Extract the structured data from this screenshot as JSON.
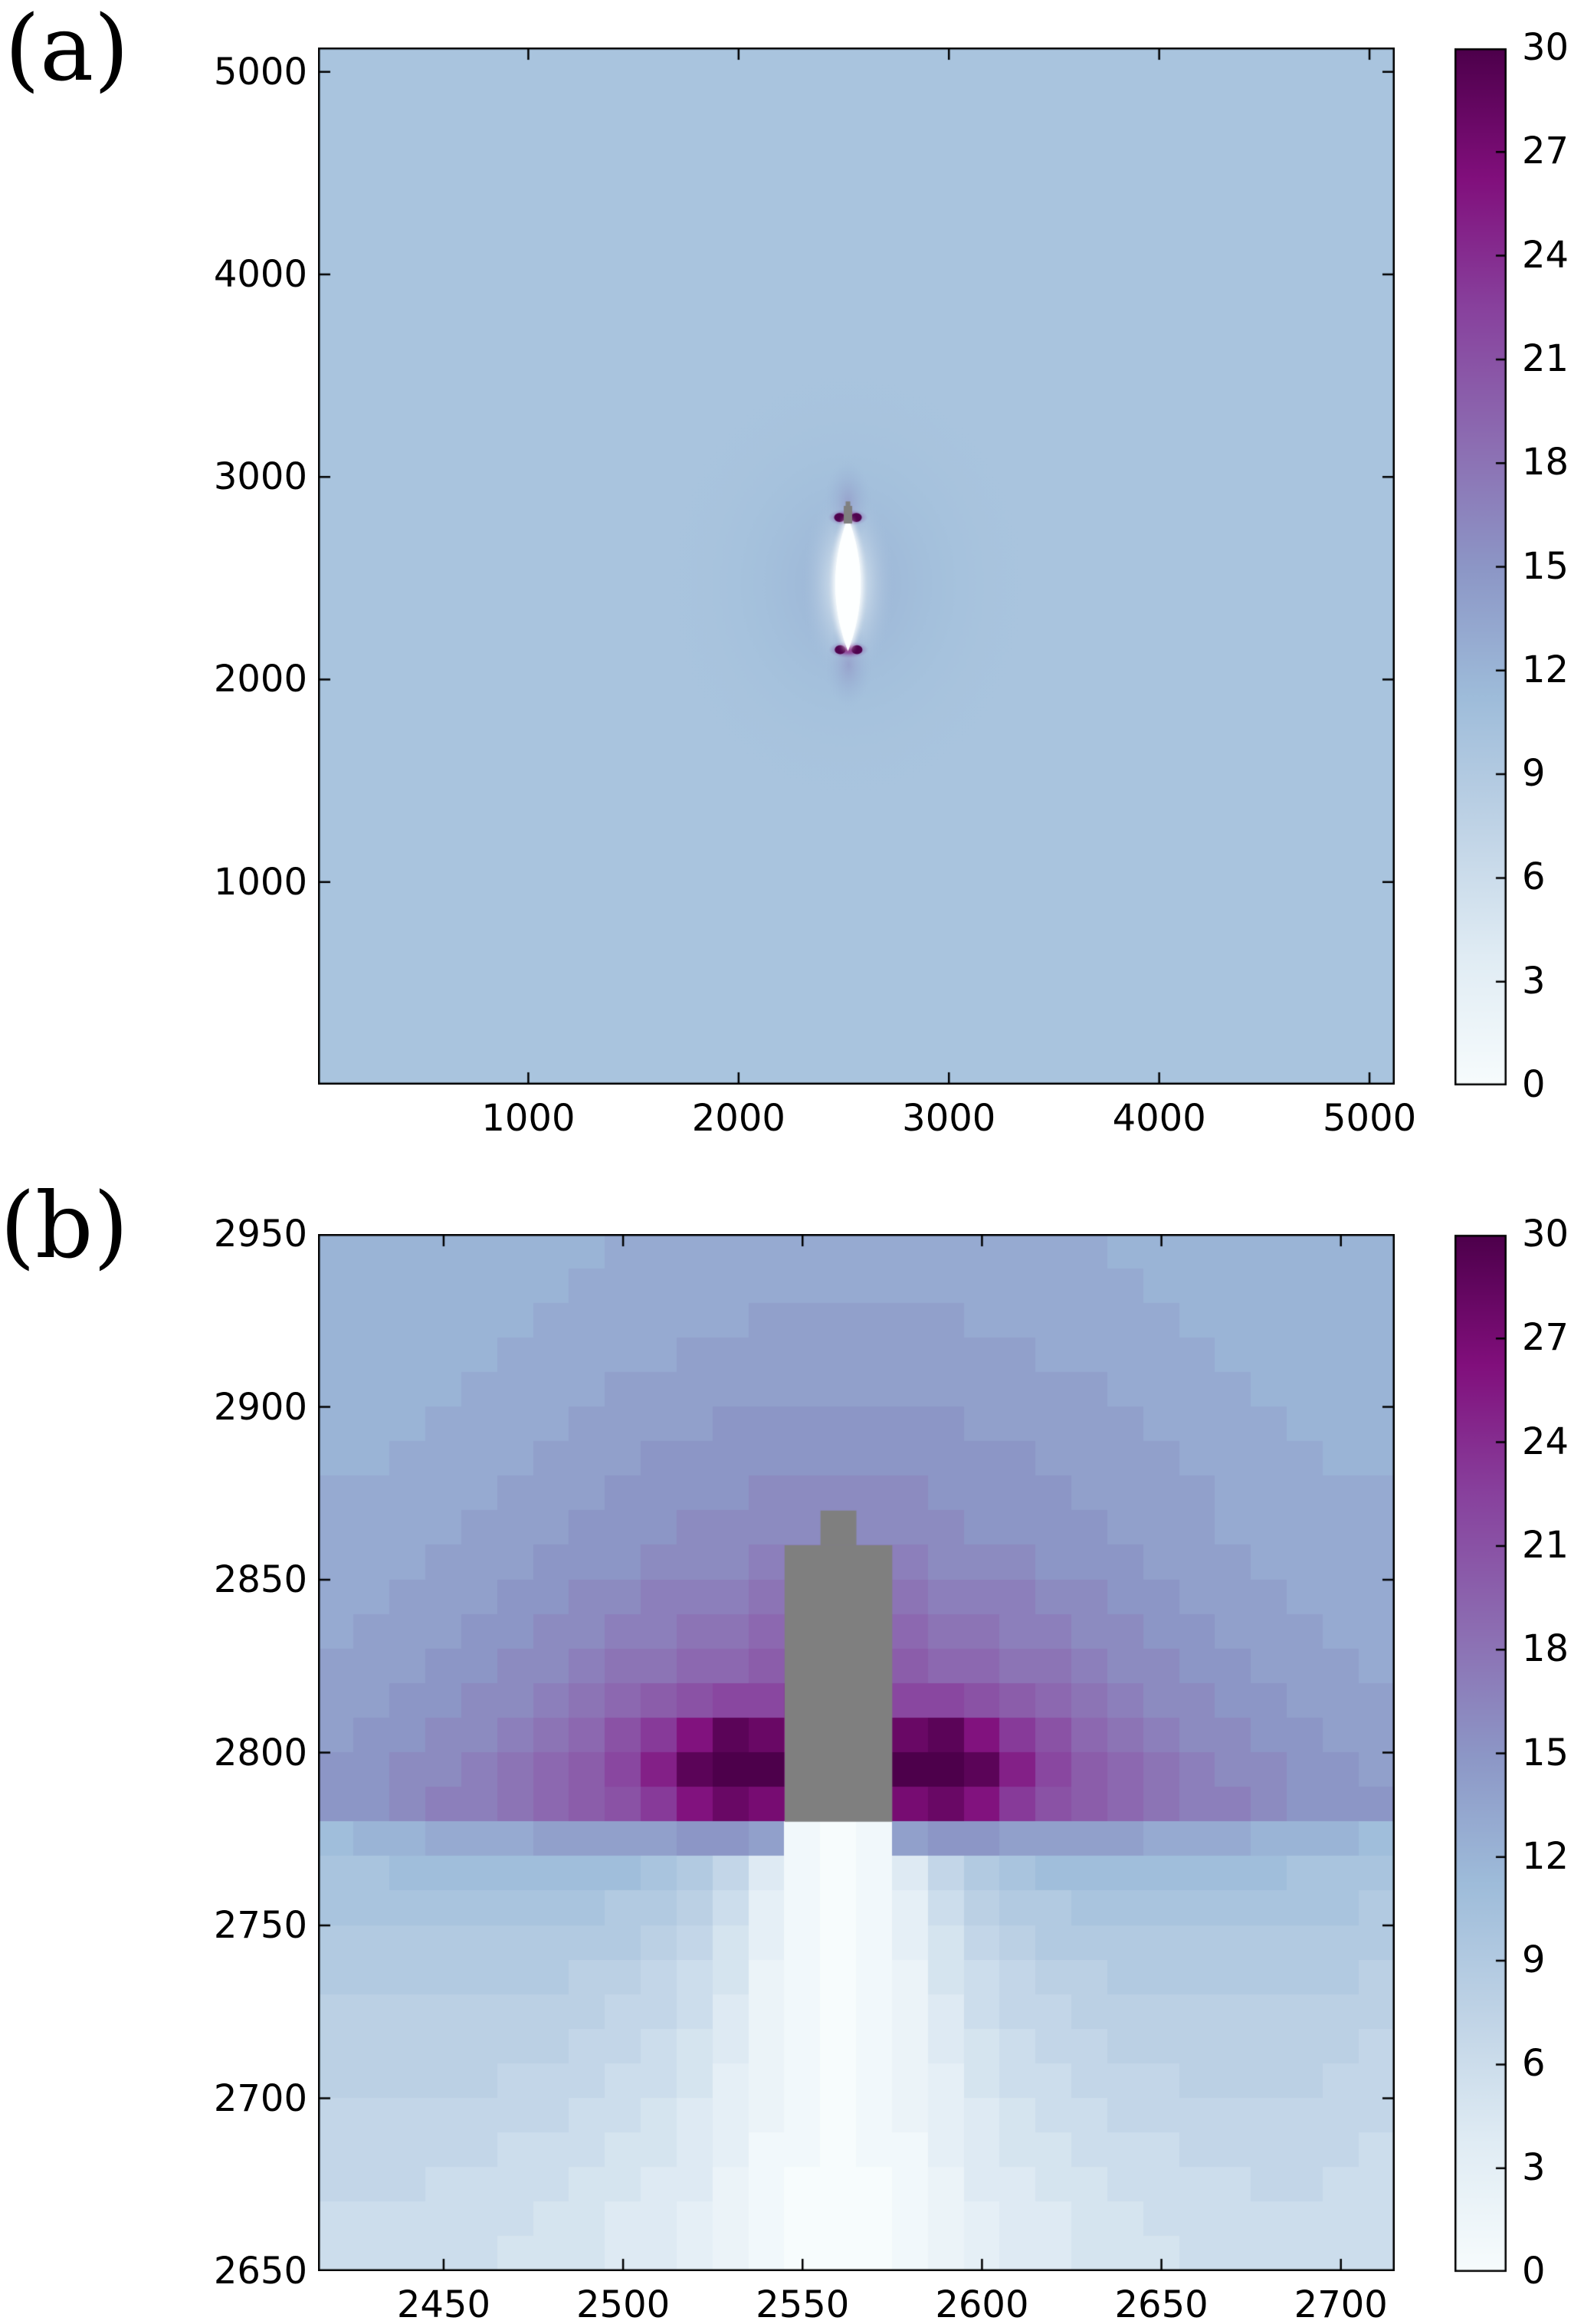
{
  "figure_type": "two-panel heatmap figure",
  "chart_data": [
    {
      "type": "heatmap",
      "title": "(a)",
      "x_range": [
        0,
        5120
      ],
      "y_range": [
        0,
        5120
      ],
      "x_ticks": [
        1000,
        2000,
        3000,
        4000,
        5000
      ],
      "y_ticks": [
        1000,
        2000,
        3000,
        4000,
        5000
      ],
      "colorbar": {
        "range": [
          0,
          30
        ],
        "ticks": [
          0,
          3,
          6,
          9,
          12,
          15,
          18,
          21,
          24,
          27,
          30
        ]
      },
      "colormap": {
        "name": "BuPu",
        "stops": [
          [
            0,
            247,
            252,
            253
          ],
          [
            3.75,
            224,
            236,
            244
          ],
          [
            7.5,
            191,
            211,
            230
          ],
          [
            11.25,
            158,
            188,
            218
          ],
          [
            15,
            140,
            150,
            198
          ],
          [
            18.75,
            140,
            107,
            177
          ],
          [
            22.5,
            136,
            65,
            157
          ],
          [
            26.25,
            129,
            15,
            124
          ],
          [
            30,
            77,
            0,
            75
          ]
        ]
      },
      "background_value": 10,
      "features": {
        "halo": {
          "cx": 2520,
          "cy": 2470,
          "rx": 850,
          "ry": 1050,
          "peak_value": 12.5
        },
        "glow": {
          "cx": 2520,
          "cy": 2470,
          "rx": 220,
          "ry": 480,
          "peak_value": 1.5
        },
        "crack": {
          "x": 2520,
          "y_from": 2140,
          "y_to": 2800,
          "half_width": 60,
          "value": 0,
          "fill": "#fdffff"
        },
        "tips": [
          {
            "x": 2520,
            "y": 2800,
            "fan_dir": 1,
            "value": 30
          },
          {
            "x": 2523,
            "y": 2147,
            "fan_dir": -1,
            "value": 30
          }
        ],
        "tip_geometry": {
          "outer_rx": 95,
          "outer_ry": 42,
          "core_dx": 40,
          "core_rx": 26,
          "core_ry": 22,
          "fan_rx": 110,
          "fan_ry": 210,
          "outer_value": 24,
          "mid_value": 27,
          "core_value": 30,
          "fan_value": 16
        },
        "masked_region": {
          "x": [
            2500,
            2540
          ],
          "y": [
            2770,
            2857
          ],
          "cap": {
            "x": [
              2509,
              2531
            ],
            "y": [
              2857,
              2879
            ]
          },
          "color": "#7f7f7f"
        }
      }
    },
    {
      "type": "heatmap",
      "title": "(b)",
      "x_range": [
        2415,
        2715
      ],
      "y_range": [
        2650,
        2950
      ],
      "x_ticks": [
        2450,
        2500,
        2550,
        2600,
        2650,
        2700
      ],
      "y_ticks": [
        2650,
        2700,
        2750,
        2800,
        2850,
        2900,
        2950
      ],
      "cell_size": 10,
      "colorbar": {
        "range": [
          0,
          30
        ],
        "ticks": [
          0,
          3,
          6,
          9,
          12,
          15,
          18,
          21,
          24,
          27,
          30
        ]
      },
      "colormap": {
        "name": "BuPu",
        "stops": [
          [
            0,
            247,
            252,
            253
          ],
          [
            3.75,
            224,
            236,
            244
          ],
          [
            7.5,
            191,
            211,
            230
          ],
          [
            11.25,
            158,
            188,
            218
          ],
          [
            15,
            140,
            150,
            198
          ],
          [
            18.75,
            140,
            107,
            177
          ],
          [
            22.5,
            136,
            65,
            157
          ],
          [
            26.25,
            129,
            15,
            124
          ],
          [
            30,
            77,
            0,
            75
          ]
        ]
      },
      "masked_region": {
        "rows": [
          9,
          16
        ],
        "cols": [
          13,
          15
        ],
        "cap": {
          "row": 8,
          "col": 14
        },
        "color": "#7f7f7f"
      },
      "grid_rows_top_to_bottom": [
        [
          12,
          12,
          12,
          12,
          12,
          12,
          12,
          12,
          13,
          13,
          13,
          13,
          13,
          13,
          13,
          13,
          13,
          13,
          13,
          13,
          13,
          13,
          12,
          12,
          12,
          12,
          12,
          12,
          12,
          12
        ],
        [
          12,
          12,
          12,
          12,
          12,
          12,
          12,
          13,
          13,
          13,
          13,
          13,
          13,
          13,
          13,
          13,
          13,
          13,
          13,
          13,
          13,
          13,
          13,
          12,
          12,
          12,
          12,
          12,
          12,
          12
        ],
        [
          12,
          12,
          12,
          12,
          12,
          12,
          13,
          13,
          13,
          13,
          13,
          13,
          14,
          14,
          14,
          14,
          14,
          14,
          13,
          13,
          13,
          13,
          13,
          13,
          12,
          12,
          12,
          12,
          12,
          12
        ],
        [
          12,
          12,
          12,
          12,
          12,
          13,
          13,
          13,
          13,
          13,
          14,
          14,
          14,
          14,
          14,
          14,
          14,
          14,
          14,
          14,
          13,
          13,
          13,
          13,
          13,
          12,
          12,
          12,
          12,
          12
        ],
        [
          12,
          12,
          12,
          12,
          13,
          13,
          13,
          13,
          14,
          14,
          14,
          14,
          14,
          14,
          14,
          14,
          14,
          14,
          14,
          14,
          14,
          14,
          13,
          13,
          13,
          13,
          12,
          12,
          12,
          12
        ],
        [
          12,
          12,
          12,
          13,
          13,
          13,
          13,
          14,
          14,
          14,
          14,
          15,
          15,
          15,
          15,
          15,
          15,
          15,
          14,
          14,
          14,
          14,
          14,
          13,
          13,
          13,
          13,
          12,
          12,
          12
        ],
        [
          12,
          12,
          13,
          13,
          13,
          13,
          14,
          14,
          14,
          15,
          15,
          15,
          15,
          15,
          15,
          15,
          15,
          15,
          15,
          15,
          14,
          14,
          14,
          14,
          13,
          13,
          13,
          13,
          12,
          12
        ],
        [
          13,
          13,
          13,
          13,
          13,
          14,
          14,
          14,
          15,
          15,
          15,
          15,
          16,
          16,
          16,
          16,
          16,
          15,
          15,
          15,
          15,
          14,
          14,
          14,
          14,
          13,
          13,
          13,
          13,
          13
        ],
        [
          13,
          13,
          13,
          13,
          14,
          14,
          14,
          15,
          15,
          15,
          16,
          16,
          16,
          16,
          16,
          16,
          16,
          16,
          15,
          15,
          15,
          15,
          14,
          14,
          14,
          13,
          13,
          13,
          13,
          13
        ],
        [
          13,
          13,
          13,
          14,
          14,
          14,
          15,
          15,
          15,
          16,
          16,
          16,
          17,
          17,
          17,
          17,
          17,
          16,
          16,
          16,
          15,
          15,
          15,
          14,
          14,
          14,
          13,
          13,
          13,
          13
        ],
        [
          13,
          13,
          14,
          14,
          14,
          15,
          15,
          16,
          16,
          17,
          17,
          17,
          18,
          18,
          18,
          18,
          18,
          17,
          17,
          17,
          16,
          16,
          15,
          15,
          14,
          14,
          14,
          13,
          13,
          13
        ],
        [
          13,
          14,
          14,
          14,
          15,
          15,
          16,
          16,
          17,
          17,
          18,
          18,
          19,
          19,
          19,
          19,
          19,
          18,
          18,
          17,
          17,
          16,
          16,
          15,
          15,
          14,
          14,
          14,
          13,
          13
        ],
        [
          14,
          14,
          14,
          15,
          15,
          16,
          16,
          17,
          18,
          18,
          19,
          19,
          20,
          20,
          20,
          20,
          20,
          19,
          19,
          18,
          18,
          17,
          16,
          16,
          15,
          15,
          14,
          14,
          14,
          13
        ],
        [
          14,
          14,
          15,
          15,
          16,
          16,
          17,
          18,
          19,
          20,
          21,
          22,
          22,
          23,
          23,
          23,
          22,
          22,
          21,
          20,
          19,
          18,
          17,
          16,
          16,
          15,
          15,
          14,
          14,
          14
        ],
        [
          14,
          15,
          15,
          16,
          16,
          17,
          18,
          19,
          21,
          23,
          26,
          29,
          28,
          26,
          26,
          26,
          28,
          29,
          26,
          23,
          21,
          19,
          18,
          17,
          16,
          16,
          15,
          15,
          14,
          14
        ],
        [
          15,
          15,
          16,
          16,
          17,
          18,
          19,
          20,
          22,
          25,
          29,
          30,
          30,
          28,
          28,
          28,
          30,
          30,
          29,
          25,
          22,
          20,
          19,
          18,
          17,
          16,
          16,
          15,
          15,
          14
        ],
        [
          15,
          15,
          16,
          17,
          17,
          18,
          19,
          20,
          21,
          23,
          26,
          28,
          27,
          26,
          26,
          26,
          27,
          28,
          26,
          23,
          21,
          20,
          19,
          18,
          17,
          17,
          16,
          15,
          15,
          15
        ],
        [
          11,
          12,
          12,
          13,
          13,
          13,
          14,
          14,
          14,
          14,
          15,
          15,
          14,
          1,
          0,
          1,
          14,
          15,
          15,
          14,
          14,
          14,
          14,
          13,
          13,
          13,
          12,
          12,
          12,
          11
        ],
        [
          10,
          10,
          11,
          11,
          11,
          11,
          11,
          11,
          11,
          10,
          9,
          7,
          4,
          1,
          0,
          1,
          4,
          7,
          9,
          10,
          11,
          11,
          11,
          11,
          11,
          11,
          11,
          10,
          10,
          10
        ],
        [
          10,
          10,
          10,
          10,
          10,
          10,
          10,
          10,
          9,
          9,
          8,
          6,
          3,
          1,
          0,
          1,
          3,
          6,
          8,
          9,
          9,
          10,
          10,
          10,
          10,
          10,
          10,
          10,
          10,
          9
        ],
        [
          9,
          9,
          9,
          9,
          9,
          9,
          9,
          9,
          9,
          8,
          7,
          5,
          3,
          1,
          0,
          1,
          3,
          5,
          7,
          8,
          9,
          9,
          9,
          9,
          9,
          9,
          9,
          9,
          9,
          9
        ],
        [
          9,
          9,
          9,
          9,
          9,
          9,
          9,
          8,
          8,
          7,
          6,
          5,
          2,
          1,
          0,
          1,
          2,
          5,
          6,
          7,
          8,
          8,
          9,
          9,
          9,
          9,
          9,
          9,
          9,
          8
        ],
        [
          8,
          8,
          8,
          8,
          8,
          8,
          8,
          8,
          7,
          7,
          6,
          4,
          2,
          1,
          0,
          1,
          2,
          4,
          6,
          7,
          7,
          8,
          8,
          8,
          8,
          8,
          8,
          8,
          8,
          8
        ],
        [
          8,
          8,
          8,
          8,
          8,
          8,
          8,
          7,
          7,
          6,
          5,
          4,
          2,
          1,
          0,
          1,
          2,
          4,
          5,
          6,
          7,
          7,
          8,
          8,
          8,
          8,
          8,
          8,
          8,
          7
        ],
        [
          8,
          8,
          8,
          8,
          8,
          7,
          7,
          7,
          6,
          6,
          5,
          3,
          2,
          1,
          0,
          1,
          2,
          3,
          5,
          6,
          6,
          7,
          7,
          7,
          8,
          8,
          8,
          8,
          7,
          7
        ],
        [
          7,
          7,
          7,
          7,
          7,
          7,
          7,
          6,
          6,
          5,
          4,
          3,
          2,
          1,
          0,
          1,
          2,
          3,
          4,
          5,
          6,
          6,
          7,
          7,
          7,
          7,
          7,
          7,
          7,
          7
        ],
        [
          7,
          7,
          7,
          7,
          7,
          6,
          6,
          6,
          5,
          5,
          4,
          3,
          1,
          1,
          0,
          1,
          1,
          3,
          4,
          5,
          5,
          6,
          6,
          6,
          7,
          7,
          7,
          7,
          7,
          6
        ],
        [
          7,
          7,
          7,
          6,
          6,
          6,
          6,
          5,
          5,
          4,
          4,
          2,
          1,
          0,
          0,
          0,
          1,
          2,
          4,
          4,
          5,
          5,
          6,
          6,
          6,
          6,
          7,
          7,
          6,
          6
        ],
        [
          6,
          6,
          6,
          6,
          6,
          6,
          5,
          5,
          4,
          4,
          3,
          2,
          1,
          0,
          0,
          0,
          1,
          2,
          3,
          4,
          4,
          5,
          5,
          6,
          6,
          6,
          6,
          6,
          6,
          6
        ],
        [
          6,
          6,
          6,
          6,
          6,
          5,
          5,
          5,
          4,
          4,
          3,
          2,
          1,
          0,
          0,
          0,
          1,
          2,
          3,
          4,
          4,
          5,
          5,
          5,
          6,
          6,
          6,
          6,
          6,
          6
        ]
      ]
    }
  ]
}
